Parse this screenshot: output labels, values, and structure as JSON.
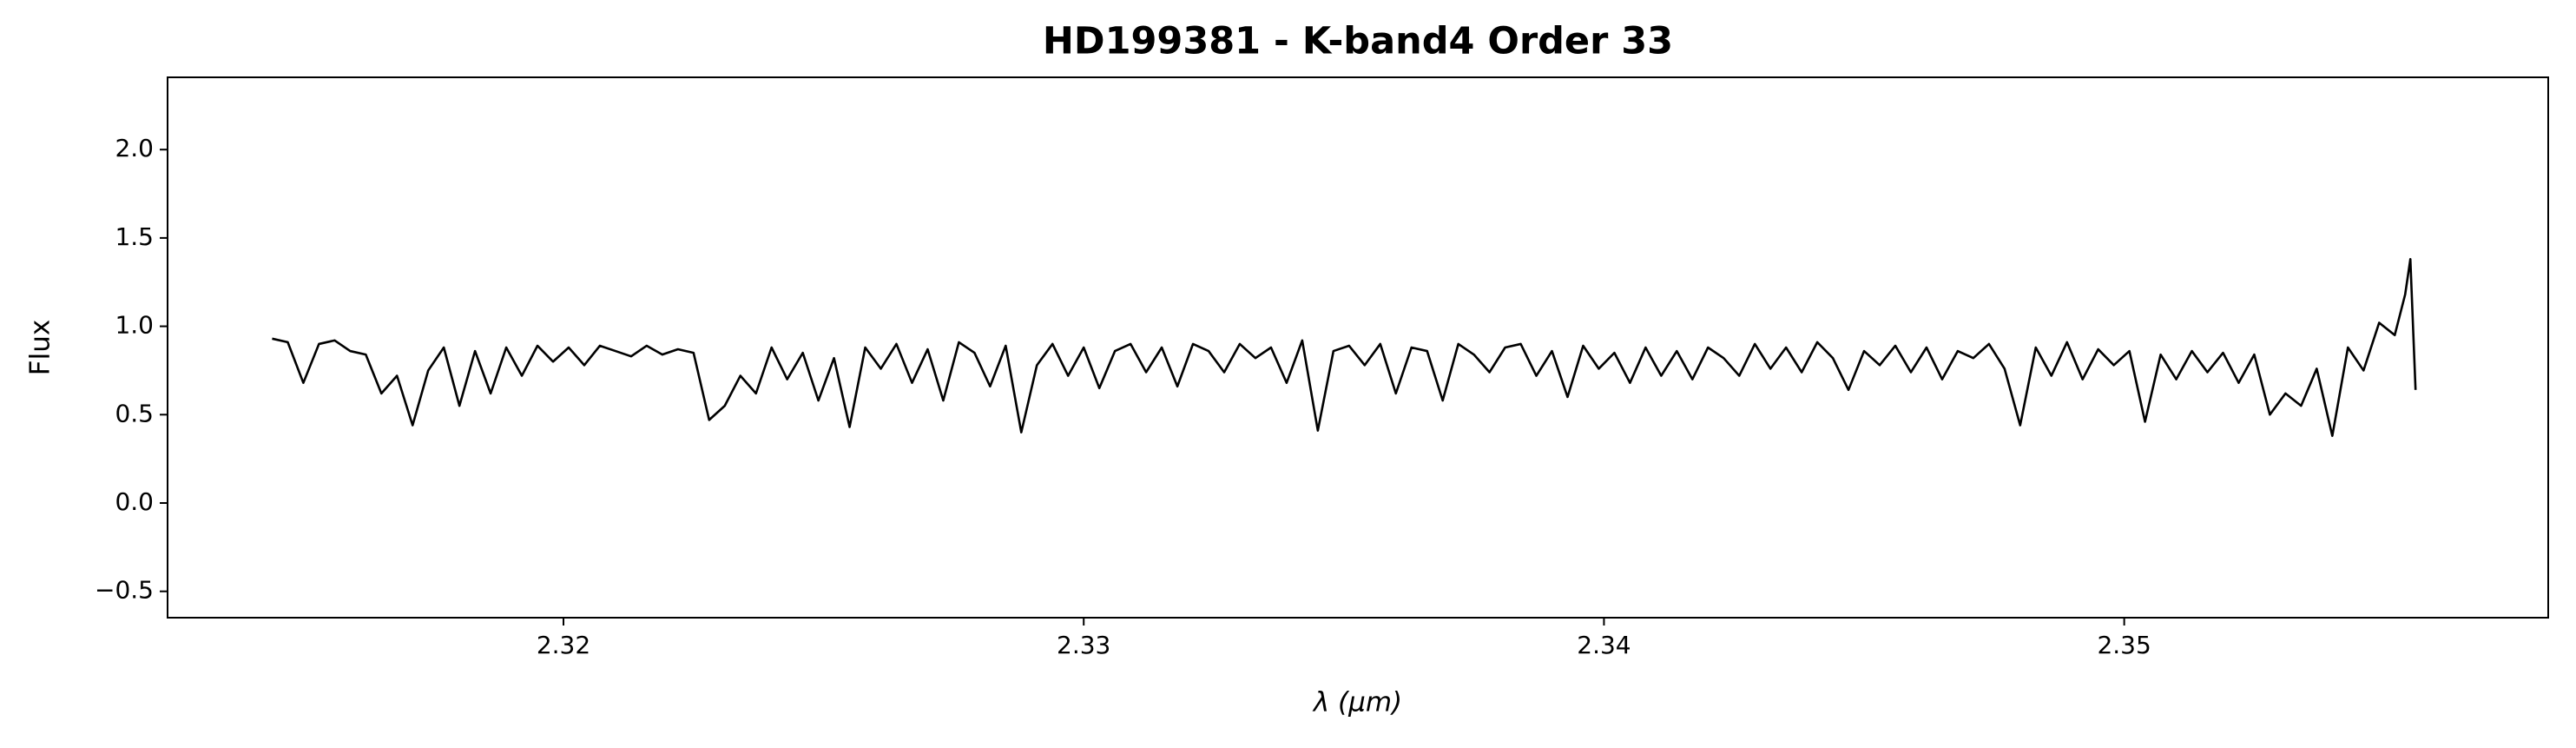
{
  "chart_data": {
    "type": "line",
    "title": "HD199381 - K-band4 Order 33",
    "xlabel": "λ (μm)",
    "ylabel": "Flux",
    "xlim": [
      2.31239,
      2.35815
    ],
    "ylim": [
      -0.649,
      2.409
    ],
    "xticks": [
      2.32,
      2.33,
      2.34,
      2.35
    ],
    "yticks": [
      {
        "value": -0.5,
        "label": "−0.5"
      },
      {
        "value": 0,
        "label": "0.0"
      },
      0.5,
      {
        "value": 1,
        "label": "1.0"
      },
      1.5,
      {
        "value": 2,
        "label": "2.0"
      }
    ],
    "grid": false,
    "series": [
      {
        "color": "#000000",
        "x": [
          2.3144,
          2.3147,
          2.315,
          2.3153,
          2.3156,
          2.3159,
          2.3162,
          2.3165,
          2.3168,
          2.3171,
          2.3174,
          2.3177,
          2.318,
          2.3183,
          2.3186,
          2.3189,
          2.3192,
          2.3195,
          2.3198,
          2.3201,
          2.3204,
          2.3207,
          2.321,
          2.3213,
          2.3216,
          2.3219,
          2.3222,
          2.3225,
          2.3228,
          2.3231,
          2.3234,
          2.3237,
          2.324,
          2.3243,
          2.3246,
          2.3249,
          2.3252,
          2.3255,
          2.3258,
          2.3261,
          2.3264,
          2.3267,
          2.327,
          2.3273,
          2.3276,
          2.3279,
          2.3282,
          2.3285,
          2.3288,
          2.3291,
          2.3294,
          2.3297,
          2.33,
          2.3303,
          2.3306,
          2.3309,
          2.3312,
          2.3315,
          2.3318,
          2.3321,
          2.3324,
          2.3327,
          2.333,
          2.3333,
          2.3336,
          2.3339,
          2.3342,
          2.3345,
          2.3348,
          2.3351,
          2.3354,
          2.3357,
          2.336,
          2.3363,
          2.3366,
          2.3369,
          2.3372,
          2.3375,
          2.3378,
          2.3381,
          2.3384,
          2.3387,
          2.339,
          2.3393,
          2.3396,
          2.3399,
          2.3402,
          2.3405,
          2.3408,
          2.3411,
          2.3414,
          2.3417,
          2.342,
          2.3423,
          2.3426,
          2.3429,
          2.3432,
          2.3435,
          2.3438,
          2.3441,
          2.3444,
          2.3447,
          2.345,
          2.3453,
          2.3456,
          2.3459,
          2.3462,
          2.3465,
          2.3468,
          2.3471,
          2.3474,
          2.3477,
          2.348,
          2.3483,
          2.3486,
          2.3489,
          2.3492,
          2.3495,
          2.3498,
          2.3501,
          2.3504,
          2.3507,
          2.351,
          2.3513,
          2.3516,
          2.3519,
          2.3522,
          2.3525,
          2.3528,
          2.3531,
          2.3534,
          2.3537,
          2.354,
          2.3543,
          2.3546,
          2.3549,
          2.3552,
          2.3554,
          2.3555,
          2.3556
        ],
        "values": [
          0.93,
          0.91,
          0.68,
          0.9,
          0.92,
          0.86,
          0.84,
          0.62,
          0.72,
          0.44,
          0.75,
          0.88,
          0.55,
          0.86,
          0.62,
          0.88,
          0.72,
          0.89,
          0.8,
          0.88,
          0.78,
          0.89,
          0.86,
          0.83,
          0.89,
          0.84,
          0.87,
          0.85,
          0.47,
          0.55,
          0.72,
          0.62,
          0.88,
          0.7,
          0.85,
          0.58,
          0.82,
          0.43,
          0.88,
          0.76,
          0.9,
          0.68,
          0.87,
          0.58,
          0.91,
          0.85,
          0.66,
          0.89,
          0.4,
          0.78,
          0.9,
          0.72,
          0.88,
          0.65,
          0.86,
          0.9,
          0.74,
          0.88,
          0.66,
          0.9,
          0.86,
          0.74,
          0.9,
          0.82,
          0.88,
          0.68,
          0.92,
          0.41,
          0.86,
          0.89,
          0.78,
          0.9,
          0.62,
          0.88,
          0.86,
          0.58,
          0.9,
          0.84,
          0.74,
          0.88,
          0.9,
          0.72,
          0.86,
          0.6,
          0.89,
          0.76,
          0.85,
          0.68,
          0.88,
          0.72,
          0.86,
          0.7,
          0.88,
          0.82,
          0.72,
          0.9,
          0.76,
          0.88,
          0.74,
          0.91,
          0.82,
          0.64,
          0.86,
          0.78,
          0.89,
          0.74,
          0.88,
          0.7,
          0.86,
          0.82,
          0.9,
          0.76,
          0.44,
          0.88,
          0.72,
          0.91,
          0.7,
          0.87,
          0.78,
          0.86,
          0.46,
          0.84,
          0.7,
          0.86,
          0.74,
          0.85,
          0.68,
          0.84,
          0.5,
          0.62,
          0.55,
          0.76,
          0.38,
          0.88,
          0.75,
          1.02,
          0.95,
          1.18,
          1.38,
          0.64
        ]
      }
    ]
  }
}
